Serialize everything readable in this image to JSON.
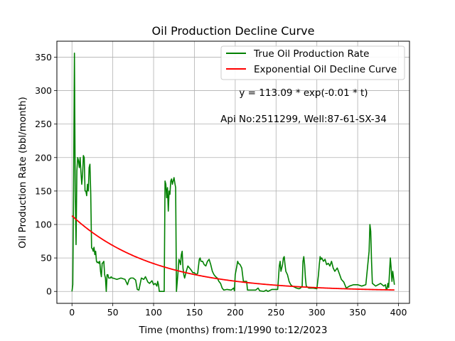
{
  "chart_data": {
    "type": "line",
    "title": "Oil Production Decline Curve",
    "xlabel": "Time (months) from:1/1990 to:12/2023",
    "ylabel": "Oil Production Rate (bbl/month)",
    "xlim": [
      -18.5,
      413.5
    ],
    "ylim": [
      -17.8,
      373.8
    ],
    "xticks": [
      0,
      50,
      100,
      150,
      200,
      250,
      300,
      350,
      400
    ],
    "yticks": [
      0,
      50,
      100,
      150,
      200,
      250,
      300,
      350
    ],
    "grid": true,
    "legend_position": "top-right",
    "annotations": [
      {
        "text": "y = 113.09 * exp(-0.01 * t)",
        "x": 280,
        "y": 293
      },
      {
        "text": "Api No:2511299, Well:87-61-SX-34",
        "x": 280,
        "y": 252
      }
    ],
    "series": [
      {
        "name": "True Oil Production Rate",
        "color": "#008000",
        "points": [
          [
            0,
            0
          ],
          [
            1,
            10
          ],
          [
            2,
            160
          ],
          [
            3,
            356
          ],
          [
            4,
            150
          ],
          [
            5,
            70
          ],
          [
            6,
            180
          ],
          [
            7,
            200
          ],
          [
            8,
            195
          ],
          [
            9,
            185
          ],
          [
            10,
            200
          ],
          [
            11,
            178
          ],
          [
            12,
            160
          ],
          [
            13,
            175
          ],
          [
            14,
            203
          ],
          [
            15,
            200
          ],
          [
            16,
            150
          ],
          [
            17,
            150
          ],
          [
            18,
            143
          ],
          [
            19,
            160
          ],
          [
            20,
            150
          ],
          [
            21,
            185
          ],
          [
            22,
            190
          ],
          [
            23,
            145
          ],
          [
            24,
            65
          ],
          [
            25,
            64
          ],
          [
            26,
            60
          ],
          [
            27,
            66
          ],
          [
            28,
            55
          ],
          [
            29,
            60
          ],
          [
            30,
            45
          ],
          [
            31,
            43
          ],
          [
            32,
            44
          ],
          [
            33,
            42
          ],
          [
            34,
            45
          ],
          [
            35,
            30
          ],
          [
            36,
            22
          ],
          [
            37,
            42
          ],
          [
            38,
            43
          ],
          [
            39,
            45
          ],
          [
            40,
            25
          ],
          [
            41,
            20
          ],
          [
            42,
            0
          ],
          [
            43,
            25
          ],
          [
            44,
            25
          ],
          [
            45,
            20
          ],
          [
            46,
            20
          ],
          [
            47,
            20
          ],
          [
            48,
            22
          ],
          [
            49,
            20
          ],
          [
            50,
            20
          ],
          [
            55,
            18
          ],
          [
            60,
            20
          ],
          [
            65,
            18
          ],
          [
            68,
            10
          ],
          [
            70,
            18
          ],
          [
            72,
            20
          ],
          [
            75,
            20
          ],
          [
            78,
            17
          ],
          [
            80,
            3
          ],
          [
            82,
            2
          ],
          [
            85,
            20
          ],
          [
            88,
            18
          ],
          [
            90,
            22
          ],
          [
            93,
            14
          ],
          [
            95,
            12
          ],
          [
            98,
            16
          ],
          [
            100,
            10
          ],
          [
            102,
            12
          ],
          [
            104,
            8
          ],
          [
            105,
            15
          ],
          [
            106,
            10
          ],
          [
            107,
            0
          ],
          [
            110,
            0
          ],
          [
            112,
            0
          ],
          [
            113,
            0
          ],
          [
            114,
            165
          ],
          [
            115,
            160
          ],
          [
            116,
            140
          ],
          [
            117,
            155
          ],
          [
            118,
            120
          ],
          [
            119,
            150
          ],
          [
            120,
            145
          ],
          [
            121,
            165
          ],
          [
            122,
            168
          ],
          [
            123,
            160
          ],
          [
            124,
            165
          ],
          [
            125,
            170
          ],
          [
            126,
            162
          ],
          [
            127,
            155
          ],
          [
            128,
            0
          ],
          [
            130,
            30
          ],
          [
            131,
            48
          ],
          [
            132,
            45
          ],
          [
            133,
            40
          ],
          [
            134,
            55
          ],
          [
            135,
            60
          ],
          [
            136,
            35
          ],
          [
            137,
            25
          ],
          [
            138,
            20
          ],
          [
            140,
            30
          ],
          [
            142,
            38
          ],
          [
            144,
            35
          ],
          [
            146,
            32
          ],
          [
            148,
            28
          ],
          [
            150,
            28
          ],
          [
            152,
            25
          ],
          [
            154,
            27
          ],
          [
            156,
            48
          ],
          [
            157,
            50
          ],
          [
            158,
            45
          ],
          [
            160,
            45
          ],
          [
            162,
            40
          ],
          [
            164,
            38
          ],
          [
            166,
            45
          ],
          [
            168,
            48
          ],
          [
            170,
            40
          ],
          [
            172,
            30
          ],
          [
            174,
            25
          ],
          [
            176,
            22
          ],
          [
            178,
            20
          ],
          [
            180,
            15
          ],
          [
            182,
            12
          ],
          [
            184,
            5
          ],
          [
            186,
            2
          ],
          [
            190,
            3
          ],
          [
            195,
            2
          ],
          [
            198,
            5
          ],
          [
            199,
            1
          ],
          [
            200,
            25
          ],
          [
            202,
            38
          ],
          [
            203,
            45
          ],
          [
            204,
            42
          ],
          [
            206,
            40
          ],
          [
            208,
            35
          ],
          [
            210,
            15
          ],
          [
            212,
            15
          ],
          [
            214,
            15
          ],
          [
            215,
            2
          ],
          [
            220,
            2
          ],
          [
            225,
            2
          ],
          [
            228,
            5
          ],
          [
            230,
            1
          ],
          [
            235,
            0
          ],
          [
            238,
            2
          ],
          [
            240,
            0
          ],
          [
            245,
            3
          ],
          [
            250,
            3
          ],
          [
            252,
            3
          ],
          [
            253,
            20
          ],
          [
            254,
            38
          ],
          [
            255,
            45
          ],
          [
            256,
            30
          ],
          [
            258,
            40
          ],
          [
            259,
            50
          ],
          [
            260,
            52
          ],
          [
            261,
            40
          ],
          [
            262,
            30
          ],
          [
            264,
            25
          ],
          [
            266,
            15
          ],
          [
            268,
            10
          ],
          [
            270,
            8
          ],
          [
            275,
            5
          ],
          [
            278,
            4
          ],
          [
            280,
            5
          ],
          [
            282,
            8
          ],
          [
            283,
            45
          ],
          [
            284,
            52
          ],
          [
            285,
            40
          ],
          [
            286,
            20
          ],
          [
            287,
            8
          ],
          [
            290,
            5
          ],
          [
            295,
            5
          ],
          [
            300,
            4
          ],
          [
            302,
            25
          ],
          [
            303,
            40
          ],
          [
            304,
            52
          ],
          [
            305,
            48
          ],
          [
            306,
            50
          ],
          [
            308,
            45
          ],
          [
            310,
            48
          ],
          [
            312,
            40
          ],
          [
            314,
            42
          ],
          [
            316,
            38
          ],
          [
            318,
            45
          ],
          [
            320,
            35
          ],
          [
            322,
            30
          ],
          [
            325,
            35
          ],
          [
            328,
            25
          ],
          [
            330,
            18
          ],
          [
            333,
            14
          ],
          [
            336,
            5
          ],
          [
            340,
            8
          ],
          [
            345,
            10
          ],
          [
            350,
            10
          ],
          [
            355,
            8
          ],
          [
            360,
            10
          ],
          [
            362,
            35
          ],
          [
            364,
            60
          ],
          [
            365,
            100
          ],
          [
            366,
            90
          ],
          [
            367,
            45
          ],
          [
            368,
            12
          ],
          [
            370,
            10
          ],
          [
            372,
            8
          ],
          [
            375,
            10
          ],
          [
            378,
            12
          ],
          [
            380,
            10
          ],
          [
            382,
            8
          ],
          [
            384,
            10
          ],
          [
            385,
            3
          ],
          [
            386,
            4
          ],
          [
            387,
            12
          ],
          [
            388,
            6
          ],
          [
            390,
            50
          ],
          [
            391,
            35
          ],
          [
            392,
            15
          ],
          [
            393,
            30
          ],
          [
            394,
            20
          ],
          [
            395,
            10
          ]
        ]
      },
      {
        "name": "Exponential Oil Decline Curve",
        "color": "#ff0000",
        "model": {
          "a": 113.09,
          "b": 0.01,
          "t_start": 0,
          "t_end": 395
        }
      }
    ]
  }
}
